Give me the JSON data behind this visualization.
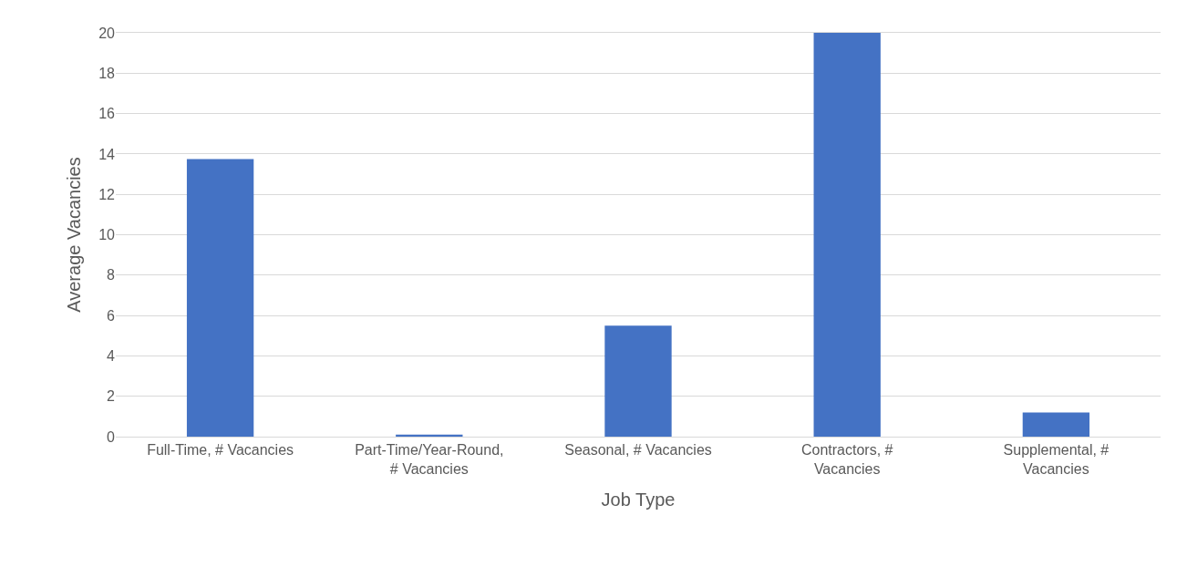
{
  "chart_data": {
    "type": "bar",
    "xlabel": "Job Type",
    "ylabel": "Average Vacancies",
    "categories": [
      "Full-Time, # Vacancies",
      "Part-Time/Year-Round, # Vacancies",
      "Seasonal, # Vacancies",
      "Contractors, # Vacancies",
      "Supplemental, # Vacancies"
    ],
    "values": [
      13.75,
      0.1,
      5.5,
      20,
      1.2
    ],
    "color": "#4472c4",
    "ylim": [
      0,
      20
    ],
    "yticks": [
      0,
      2,
      4,
      6,
      8,
      10,
      12,
      14,
      16,
      18,
      20
    ],
    "grid": "y"
  }
}
